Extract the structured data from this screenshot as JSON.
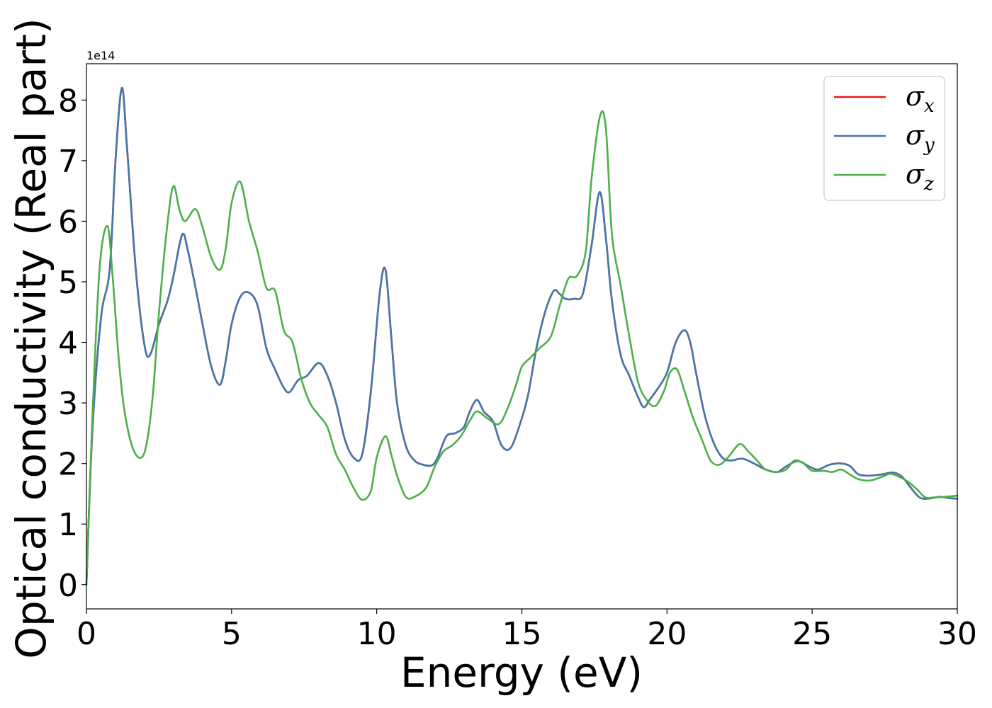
{
  "chart_data": {
    "type": "line",
    "xlabel": "Energy (eV)",
    "ylabel": "Optical conductivity (Real part)",
    "y_offset_label": "1e14",
    "xlim": [
      0,
      30
    ],
    "ylim": [
      -0.4,
      8.6
    ],
    "xticks": [
      0,
      5,
      10,
      15,
      20,
      25,
      30
    ],
    "xtick_labels": [
      "0",
      "5",
      "10",
      "15",
      "20",
      "25",
      "30"
    ],
    "yticks": [
      0,
      1,
      2,
      3,
      4,
      5,
      6,
      7,
      8
    ],
    "ytick_labels": [
      "0",
      "1",
      "2",
      "3",
      "4",
      "5",
      "6",
      "7",
      "8"
    ],
    "grid": false,
    "legend_position": "top-right",
    "series": [
      {
        "name": "σx",
        "symbol": "σ",
        "subscript": "x",
        "color": "#e41a1c",
        "x": [
          0,
          0.2,
          0.5,
          0.8,
          1.0,
          1.22,
          1.4,
          1.7,
          2.0,
          2.2,
          2.5,
          2.8,
          3.0,
          3.3,
          3.5,
          3.8,
          4.0,
          4.3,
          4.6,
          4.8,
          5.0,
          5.3,
          5.6,
          5.9,
          6.2,
          6.5,
          6.8,
          7.0,
          7.3,
          7.6,
          8.0,
          8.3,
          8.6,
          8.9,
          9.2,
          9.5,
          9.8,
          10.1,
          10.3,
          10.5,
          10.7,
          11.0,
          11.3,
          11.6,
          11.9,
          12.1,
          12.4,
          12.7,
          13.0,
          13.2,
          13.45,
          13.7,
          14.0,
          14.3,
          14.6,
          14.9,
          15.2,
          15.5,
          15.8,
          16.1,
          16.3,
          16.5,
          16.8,
          17.1,
          17.4,
          17.68,
          17.9,
          18.1,
          18.4,
          18.7,
          19.0,
          19.2,
          19.4,
          19.7,
          20.0,
          20.3,
          20.6,
          20.8,
          21.0,
          21.3,
          21.6,
          21.9,
          22.2,
          22.6,
          23.0,
          23.4,
          23.8,
          24.1,
          24.5,
          24.9,
          25.2,
          25.6,
          26.0,
          26.3,
          26.6,
          27.0,
          27.4,
          27.8,
          28.1,
          28.4,
          28.7,
          29.0,
          29.4,
          29.7,
          30.0
        ],
        "y": [
          0,
          2.5,
          4.4,
          5.2,
          7.0,
          8.2,
          7.2,
          5.2,
          3.95,
          3.8,
          4.3,
          4.7,
          5.1,
          5.78,
          5.5,
          4.8,
          4.3,
          3.6,
          3.3,
          3.7,
          4.3,
          4.75,
          4.82,
          4.6,
          3.9,
          3.55,
          3.25,
          3.18,
          3.38,
          3.45,
          3.66,
          3.45,
          3.0,
          2.4,
          2.1,
          2.15,
          3.2,
          4.8,
          5.2,
          4.1,
          3.0,
          2.3,
          2.05,
          1.98,
          1.97,
          2.1,
          2.45,
          2.5,
          2.6,
          2.85,
          3.05,
          2.85,
          2.7,
          2.3,
          2.25,
          2.6,
          3.1,
          3.9,
          4.5,
          4.85,
          4.8,
          4.72,
          4.72,
          4.8,
          5.6,
          6.48,
          5.7,
          4.7,
          3.8,
          3.45,
          3.1,
          2.93,
          3.05,
          3.25,
          3.5,
          4.0,
          4.2,
          4.0,
          3.5,
          2.8,
          2.35,
          2.1,
          2.05,
          2.08,
          2.0,
          1.9,
          1.86,
          1.95,
          2.04,
          1.95,
          1.9,
          1.98,
          2.0,
          1.96,
          1.82,
          1.8,
          1.82,
          1.85,
          1.78,
          1.6,
          1.44,
          1.42,
          1.45,
          1.43,
          1.42
        ]
      },
      {
        "name": "σy",
        "symbol": "σ",
        "subscript": "y",
        "color": "#4477aa",
        "x": [
          0,
          0.2,
          0.5,
          0.8,
          1.0,
          1.22,
          1.4,
          1.7,
          2.0,
          2.2,
          2.5,
          2.8,
          3.0,
          3.3,
          3.5,
          3.8,
          4.0,
          4.3,
          4.6,
          4.8,
          5.0,
          5.3,
          5.6,
          5.9,
          6.2,
          6.5,
          6.8,
          7.0,
          7.3,
          7.6,
          8.0,
          8.3,
          8.6,
          8.9,
          9.2,
          9.5,
          9.8,
          10.1,
          10.3,
          10.5,
          10.7,
          11.0,
          11.3,
          11.6,
          11.9,
          12.1,
          12.4,
          12.7,
          13.0,
          13.2,
          13.45,
          13.7,
          14.0,
          14.3,
          14.6,
          14.9,
          15.2,
          15.5,
          15.8,
          16.1,
          16.3,
          16.5,
          16.8,
          17.1,
          17.4,
          17.68,
          17.9,
          18.1,
          18.4,
          18.7,
          19.0,
          19.2,
          19.4,
          19.7,
          20.0,
          20.3,
          20.6,
          20.8,
          21.0,
          21.3,
          21.6,
          21.9,
          22.2,
          22.6,
          23.0,
          23.4,
          23.8,
          24.1,
          24.5,
          24.9,
          25.2,
          25.6,
          26.0,
          26.3,
          26.6,
          27.0,
          27.4,
          27.8,
          28.1,
          28.4,
          28.7,
          29.0,
          29.4,
          29.7,
          30.0
        ],
        "y": [
          0,
          2.5,
          4.4,
          5.2,
          7.0,
          8.2,
          7.2,
          5.2,
          3.95,
          3.8,
          4.3,
          4.7,
          5.1,
          5.78,
          5.5,
          4.8,
          4.3,
          3.6,
          3.3,
          3.7,
          4.3,
          4.75,
          4.82,
          4.6,
          3.9,
          3.55,
          3.25,
          3.18,
          3.38,
          3.45,
          3.66,
          3.45,
          3.0,
          2.4,
          2.1,
          2.15,
          3.2,
          4.8,
          5.2,
          4.1,
          3.0,
          2.3,
          2.05,
          1.98,
          1.97,
          2.1,
          2.45,
          2.5,
          2.6,
          2.85,
          3.05,
          2.85,
          2.7,
          2.3,
          2.25,
          2.6,
          3.1,
          3.9,
          4.5,
          4.85,
          4.8,
          4.72,
          4.72,
          4.8,
          5.6,
          6.48,
          5.7,
          4.7,
          3.8,
          3.45,
          3.1,
          2.93,
          3.05,
          3.25,
          3.5,
          4.0,
          4.2,
          4.0,
          3.5,
          2.8,
          2.35,
          2.1,
          2.05,
          2.08,
          2.0,
          1.9,
          1.86,
          1.95,
          2.04,
          1.95,
          1.9,
          1.98,
          2.0,
          1.96,
          1.82,
          1.8,
          1.82,
          1.85,
          1.78,
          1.6,
          1.44,
          1.42,
          1.45,
          1.43,
          1.42
        ]
      },
      {
        "name": "σz",
        "symbol": "σ",
        "subscript": "z",
        "color": "#4daf4a",
        "x": [
          0,
          0.2,
          0.45,
          0.72,
          0.9,
          1.1,
          1.3,
          1.6,
          1.9,
          2.1,
          2.3,
          2.5,
          2.8,
          3.0,
          3.2,
          3.4,
          3.75,
          4.0,
          4.3,
          4.6,
          4.8,
          5.0,
          5.3,
          5.6,
          5.9,
          6.2,
          6.5,
          6.8,
          7.1,
          7.4,
          7.7,
          8.0,
          8.3,
          8.6,
          8.9,
          9.2,
          9.5,
          9.8,
          10.0,
          10.3,
          10.5,
          10.7,
          11.0,
          11.3,
          11.7,
          12.0,
          12.3,
          12.6,
          12.9,
          13.2,
          13.45,
          13.8,
          14.2,
          14.5,
          14.8,
          15.0,
          15.3,
          15.6,
          16.0,
          16.3,
          16.6,
          16.9,
          17.2,
          17.4,
          17.7,
          17.9,
          18.1,
          18.4,
          18.7,
          19.0,
          19.3,
          19.6,
          19.9,
          20.1,
          20.35,
          20.6,
          20.9,
          21.2,
          21.5,
          21.8,
          22.1,
          22.5,
          22.8,
          23.1,
          23.4,
          23.8,
          24.1,
          24.4,
          24.7,
          25.0,
          25.4,
          25.7,
          26.0,
          26.3,
          26.6,
          27.0,
          27.4,
          27.7,
          28.0,
          28.3,
          28.6,
          28.9,
          29.2,
          29.6,
          30.0
        ],
        "y": [
          0,
          2.7,
          5.2,
          5.92,
          5.1,
          3.8,
          2.9,
          2.25,
          2.1,
          2.4,
          3.2,
          4.5,
          6.0,
          6.58,
          6.2,
          6.0,
          6.2,
          5.9,
          5.4,
          5.2,
          5.55,
          6.3,
          6.65,
          6.0,
          5.5,
          4.9,
          4.85,
          4.2,
          4.0,
          3.4,
          3.0,
          2.8,
          2.6,
          2.15,
          1.9,
          1.6,
          1.4,
          1.55,
          2.1,
          2.45,
          2.15,
          1.8,
          1.45,
          1.45,
          1.6,
          1.95,
          2.2,
          2.3,
          2.45,
          2.7,
          2.86,
          2.75,
          2.65,
          2.9,
          3.3,
          3.6,
          3.75,
          3.9,
          4.1,
          4.6,
          5.05,
          5.1,
          5.5,
          6.7,
          7.75,
          7.5,
          5.8,
          4.95,
          4.1,
          3.35,
          3.05,
          2.95,
          3.2,
          3.5,
          3.55,
          3.2,
          2.75,
          2.4,
          2.05,
          1.98,
          2.1,
          2.32,
          2.2,
          2.05,
          1.9,
          1.86,
          1.9,
          2.05,
          2.0,
          1.88,
          1.88,
          1.86,
          1.9,
          1.82,
          1.74,
          1.72,
          1.78,
          1.83,
          1.78,
          1.7,
          1.58,
          1.44,
          1.44,
          1.45,
          1.47
        ]
      }
    ]
  }
}
